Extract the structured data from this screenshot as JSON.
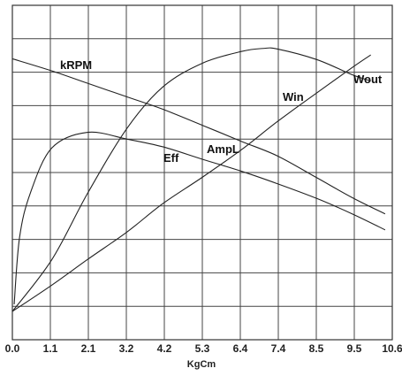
{
  "chart_data": {
    "type": "line",
    "xlabel": "KgCm",
    "x_ticks": [
      "0.0",
      "1.1",
      "2.1",
      "3.2",
      "4.2",
      "5.3",
      "6.4",
      "7.4",
      "8.5",
      "9.5",
      "10.6"
    ],
    "xlim": [
      0,
      10.6
    ],
    "ylim": [
      0,
      100
    ],
    "grid": true,
    "series": [
      {
        "name": "kRPM",
        "points": [
          [
            0.0,
            85.5
          ],
          [
            1.1,
            81.4
          ],
          [
            2.1,
            77.2
          ],
          [
            3.2,
            72.6
          ],
          [
            4.2,
            68.4
          ],
          [
            5.3,
            63.0
          ],
          [
            6.4,
            57.5
          ],
          [
            7.4,
            52.6
          ],
          [
            8.5,
            45.2
          ],
          [
            9.5,
            38.4
          ],
          [
            10.4,
            33.0
          ]
        ]
      },
      {
        "name": "AmpL",
        "points": [
          [
            0.0,
            0.0
          ],
          [
            1.1,
            8.9
          ],
          [
            2.1,
            17.6
          ],
          [
            3.2,
            26.9
          ],
          [
            4.2,
            36.5
          ],
          [
            5.3,
            45.4
          ],
          [
            6.4,
            54.8
          ],
          [
            7.4,
            64.3
          ],
          [
            8.5,
            74.0
          ],
          [
            9.5,
            82.7
          ],
          [
            10.0,
            86.8
          ]
        ]
      },
      {
        "name": "Win",
        "points": [
          [
            0.0,
            0.0
          ],
          [
            1.1,
            17.5
          ],
          [
            2.1,
            40.0
          ],
          [
            3.2,
            62.0
          ],
          [
            4.2,
            76.0
          ],
          [
            5.3,
            84.0
          ],
          [
            6.4,
            88.0
          ],
          [
            7.0,
            89.0
          ],
          [
            7.4,
            88.8
          ],
          [
            8.5,
            85.2
          ],
          [
            9.5,
            80.0
          ],
          [
            10.0,
            78.0
          ]
        ]
      },
      {
        "name": "Eff",
        "points": [
          [
            0.05,
            2.4
          ],
          [
            0.2,
            25.0
          ],
          [
            0.5,
            40.0
          ],
          [
            1.1,
            55.3
          ],
          [
            2.1,
            60.6
          ],
          [
            3.2,
            58.3
          ],
          [
            4.2,
            55.7
          ],
          [
            5.3,
            51.5
          ],
          [
            6.4,
            47.4
          ],
          [
            7.4,
            43.2
          ],
          [
            8.5,
            38.2
          ],
          [
            9.5,
            32.9
          ],
          [
            10.4,
            27.6
          ]
        ]
      }
    ],
    "labels": {
      "kRPM": "kRPM",
      "Eff": "Eff",
      "AmpL": "AmpL",
      "Win": "Win",
      "Wout": "Wout"
    }
  }
}
